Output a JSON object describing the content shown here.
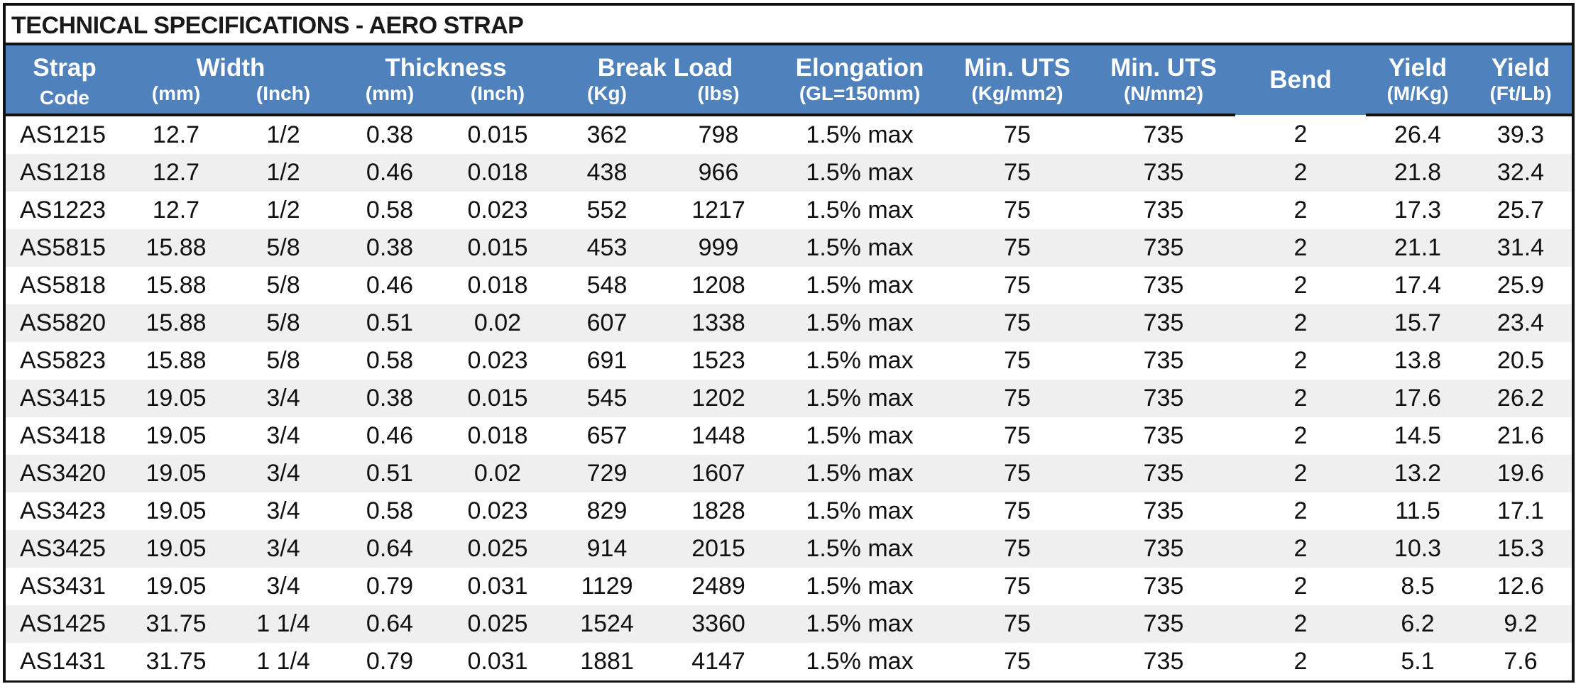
{
  "title": "TECHNICAL SPECIFICATIONS - AERO STRAP",
  "header": {
    "strap_line1": "Strap",
    "strap_line2": "Code",
    "width": "Width",
    "width_mm": "(mm)",
    "width_inch": "(Inch)",
    "thickness": "Thickness",
    "thickness_mm": "(mm)",
    "thickness_inch": "(Inch)",
    "break_load": "Break Load",
    "break_kg": "(Kg)",
    "break_lbs": "(lbs)",
    "elongation": "Elongation",
    "elongation_unit": "(GL=150mm)",
    "uts_kg": "Min. UTS",
    "uts_kg_unit": "(Kg/mm2)",
    "uts_n": "Min. UTS",
    "uts_n_unit": "(N/mm2)",
    "bend": "Bend",
    "yield_m": "Yield",
    "yield_m_unit": "(M/Kg)",
    "yield_ft": "Yield",
    "yield_ft_unit": "(Ft/Lb)"
  },
  "rows": [
    [
      "AS1215",
      "12.7",
      "1/2",
      "0.38",
      "0.015",
      "362",
      "798",
      "1.5% max",
      "75",
      "735",
      "2",
      "26.4",
      "39.3"
    ],
    [
      "AS1218",
      "12.7",
      "1/2",
      "0.46",
      "0.018",
      "438",
      "966",
      "1.5% max",
      "75",
      "735",
      "2",
      "21.8",
      "32.4"
    ],
    [
      "AS1223",
      "12.7",
      "1/2",
      "0.58",
      "0.023",
      "552",
      "1217",
      "1.5% max",
      "75",
      "735",
      "2",
      "17.3",
      "25.7"
    ],
    [
      "AS5815",
      "15.88",
      "5/8",
      "0.38",
      "0.015",
      "453",
      "999",
      "1.5% max",
      "75",
      "735",
      "2",
      "21.1",
      "31.4"
    ],
    [
      "AS5818",
      "15.88",
      "5/8",
      "0.46",
      "0.018",
      "548",
      "1208",
      "1.5% max",
      "75",
      "735",
      "2",
      "17.4",
      "25.9"
    ],
    [
      "AS5820",
      "15.88",
      "5/8",
      "0.51",
      "0.02",
      "607",
      "1338",
      "1.5% max",
      "75",
      "735",
      "2",
      "15.7",
      "23.4"
    ],
    [
      "AS5823",
      "15.88",
      "5/8",
      "0.58",
      "0.023",
      "691",
      "1523",
      "1.5% max",
      "75",
      "735",
      "2",
      "13.8",
      "20.5"
    ],
    [
      "AS3415",
      "19.05",
      "3/4",
      "0.38",
      "0.015",
      "545",
      "1202",
      "1.5% max",
      "75",
      "735",
      "2",
      "17.6",
      "26.2"
    ],
    [
      "AS3418",
      "19.05",
      "3/4",
      "0.46",
      "0.018",
      "657",
      "1448",
      "1.5% max",
      "75",
      "735",
      "2",
      "14.5",
      "21.6"
    ],
    [
      "AS3420",
      "19.05",
      "3/4",
      "0.51",
      "0.02",
      "729",
      "1607",
      "1.5% max",
      "75",
      "735",
      "2",
      "13.2",
      "19.6"
    ],
    [
      "AS3423",
      "19.05",
      "3/4",
      "0.58",
      "0.023",
      "829",
      "1828",
      "1.5% max",
      "75",
      "735",
      "2",
      "11.5",
      "17.1"
    ],
    [
      "AS3425",
      "19.05",
      "3/4",
      "0.64",
      "0.025",
      "914",
      "2015",
      "1.5% max",
      "75",
      "735",
      "2",
      "10.3",
      "15.3"
    ],
    [
      "AS3431",
      "19.05",
      "3/4",
      "0.79",
      "0.031",
      "1129",
      "2489",
      "1.5% max",
      "75",
      "735",
      "2",
      "8.5",
      "12.6"
    ],
    [
      "AS1425",
      "31.75",
      "1 1/4",
      "0.64",
      "0.025",
      "1524",
      "3360",
      "1.5% max",
      "75",
      "735",
      "2",
      "6.2",
      "9.2"
    ],
    [
      "AS1431",
      "31.75",
      "1 1/4",
      "0.79",
      "0.031",
      "1881",
      "4147",
      "1.5% max",
      "75",
      "735",
      "2",
      "5.1",
      "7.6"
    ]
  ],
  "colors": {
    "header_bg": "#4f81bd",
    "header_text": "#ffffff",
    "row_alt_bg": "#efefef",
    "border": "#111111"
  }
}
